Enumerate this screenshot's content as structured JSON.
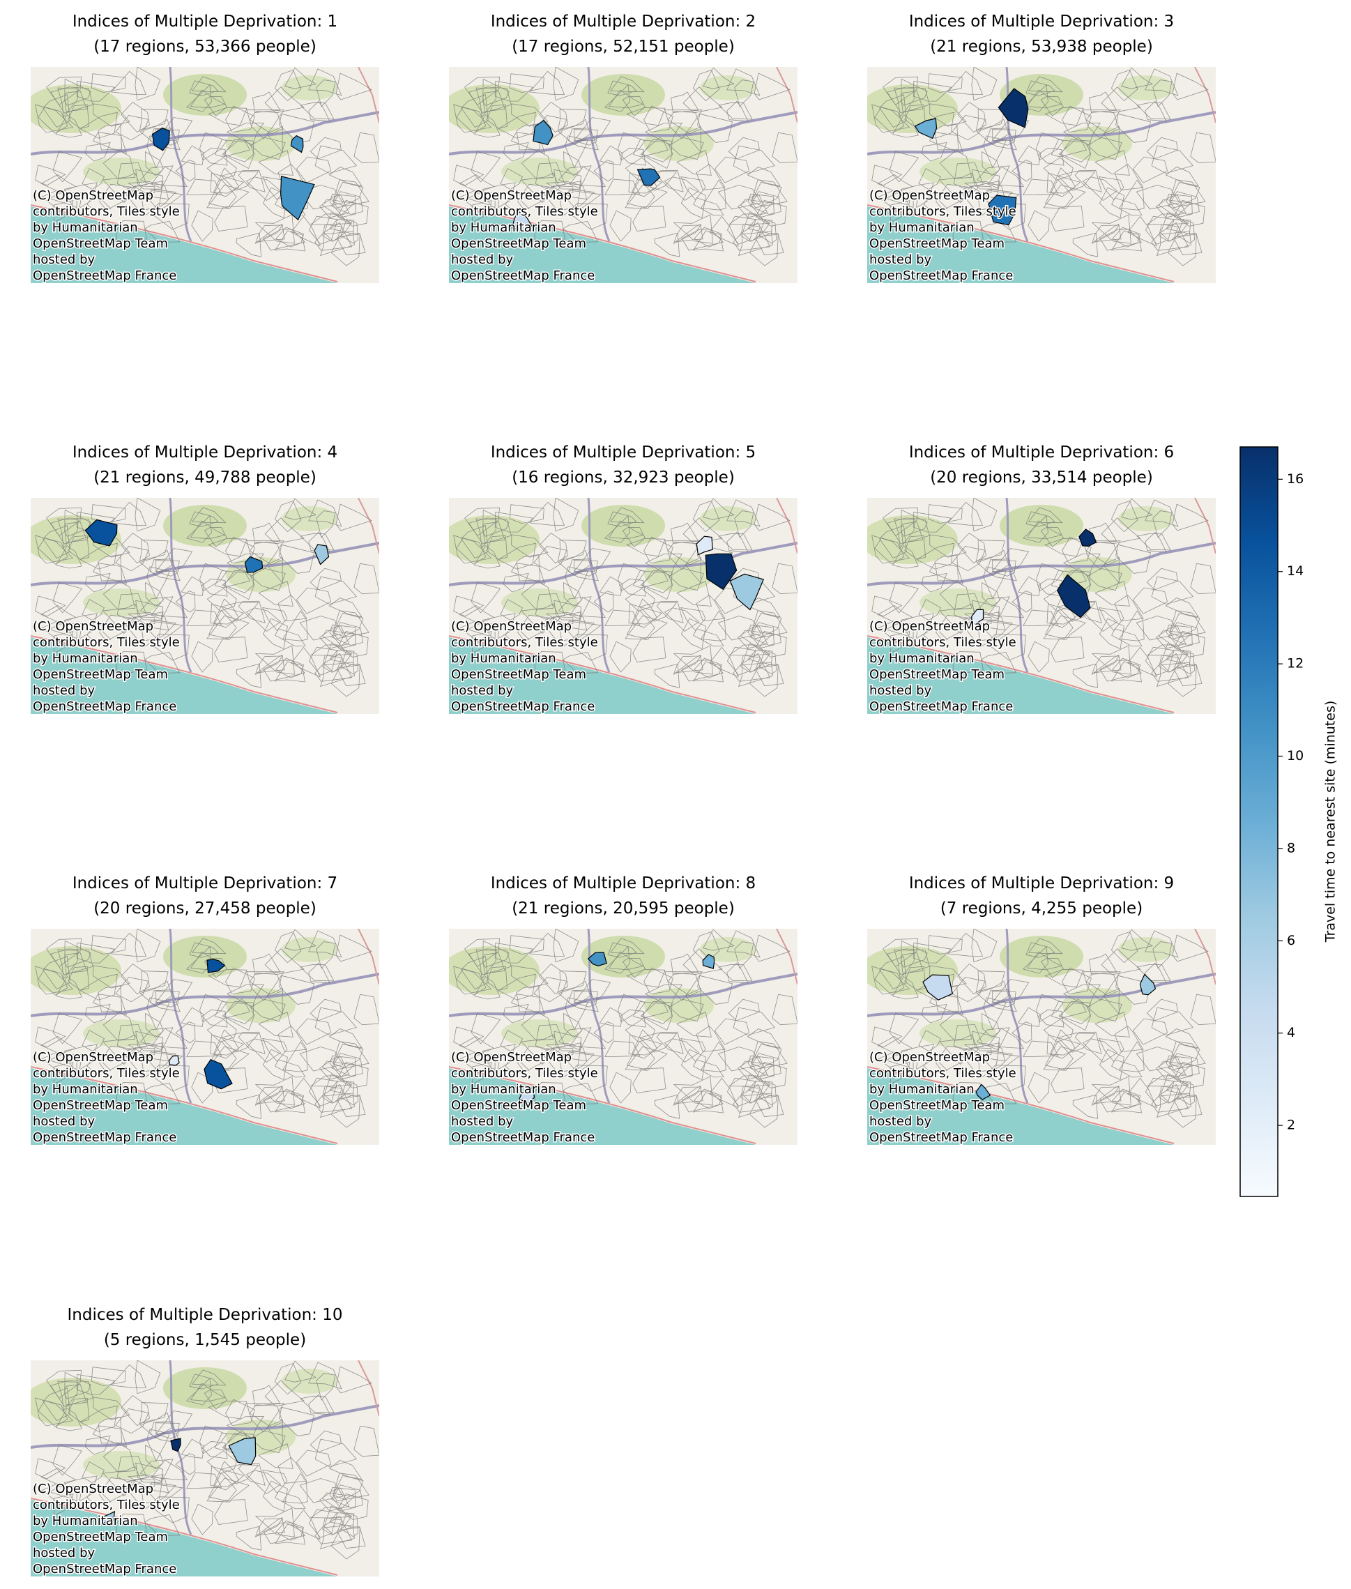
{
  "panels": [
    {
      "title": "Indices of Multiple Deprivation: 1",
      "subtitle": "(17 regions, 53,366 people)"
    },
    {
      "title": "Indices of Multiple Deprivation: 2",
      "subtitle": "(17 regions, 52,151 people)"
    },
    {
      "title": "Indices of Multiple Deprivation: 3",
      "subtitle": "(21 regions, 53,938 people)"
    },
    {
      "title": "Indices of Multiple Deprivation: 4",
      "subtitle": "(21 regions, 49,788 people)"
    },
    {
      "title": "Indices of Multiple Deprivation: 5",
      "subtitle": "(16 regions, 32,923 people)"
    },
    {
      "title": "Indices of Multiple Deprivation: 6",
      "subtitle": "(20 regions, 33,514 people)"
    },
    {
      "title": "Indices of Multiple Deprivation: 7",
      "subtitle": "(20 regions, 27,458 people)"
    },
    {
      "title": "Indices of Multiple Deprivation: 8",
      "subtitle": "(21 regions, 20,595 people)"
    },
    {
      "title": "Indices of Multiple Deprivation: 9",
      "subtitle": "(7 regions, 4,255 people)"
    },
    {
      "title": "Indices of Multiple Deprivation: 10",
      "subtitle": "(5 regions, 1,545 people)"
    }
  ],
  "attribution": [
    "(C) OpenStreetMap",
    "contributors, Tiles style",
    "by Humanitarian",
    "OpenStreetMap Team",
    "hosted by",
    "OpenStreetMap France"
  ],
  "colorbar": {
    "label": "Travel time to nearest site (minutes)",
    "lim": [
      0.46,
      16.7
    ],
    "ticks": [
      2,
      4,
      6,
      8,
      10,
      12,
      14,
      16
    ]
  }
}
